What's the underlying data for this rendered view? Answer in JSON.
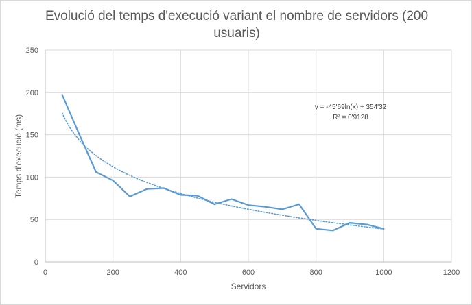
{
  "chart_data": {
    "type": "line",
    "title_lines": [
      "Evolució del temps d'execució variant el nombre de servidors (200",
      "usuaris)"
    ],
    "xlabel": "Servidors",
    "ylabel": "Temps d'execució (ms)",
    "xlim": [
      0,
      1200
    ],
    "ylim": [
      0,
      250
    ],
    "x_ticks": [
      0,
      200,
      400,
      600,
      800,
      1000,
      1200
    ],
    "y_ticks": [
      0,
      50,
      100,
      150,
      200,
      250
    ],
    "grid": true,
    "series": [
      {
        "color": "#5b9bd5",
        "x": [
          50,
          100,
          150,
          200,
          250,
          300,
          350,
          400,
          450,
          500,
          550,
          600,
          650,
          700,
          750,
          800,
          850,
          900,
          950,
          1000
        ],
        "values": [
          197,
          151,
          106,
          96,
          77,
          86,
          87,
          79,
          78,
          68,
          74,
          67,
          65,
          62,
          68,
          39,
          37,
          46,
          44,
          39
        ]
      }
    ],
    "trendline": {
      "type": "logarithmic",
      "a": -45.69,
      "b": 354.32,
      "color": "#5b9bd5",
      "style": "dotted",
      "equation": "y = -45'69ln(x) + 354'32",
      "r2": "R² = 0'9128"
    }
  }
}
